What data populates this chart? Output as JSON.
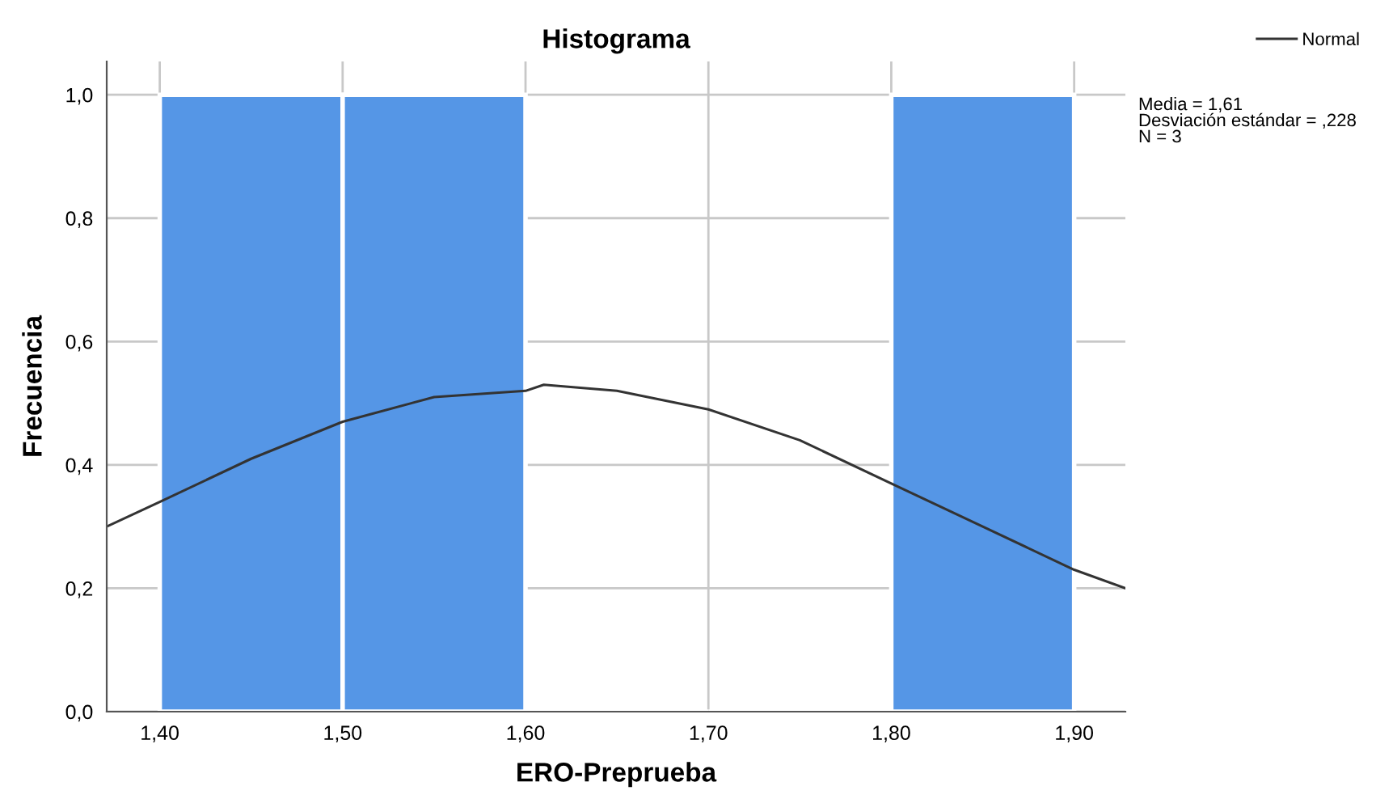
{
  "chart_data": {
    "type": "histogram",
    "title": "Histograma",
    "xlabel": "ERO-Preprueba",
    "ylabel": "Frecuencia",
    "bins": [
      1.4,
      1.5,
      1.6,
      1.7,
      1.8,
      1.9
    ],
    "values": [
      1,
      1,
      0,
      0,
      1
    ],
    "color": "#5596e6",
    "series": [
      {
        "name": "Normal",
        "type": "line",
        "color": "#333333",
        "x": [
          1.371,
          1.4,
          1.45,
          1.5,
          1.55,
          1.6,
          1.61,
          1.65,
          1.7,
          1.75,
          1.8,
          1.85,
          1.9,
          1.928
        ],
        "values": [
          0.3,
          0.34,
          0.41,
          0.47,
          0.51,
          0.52,
          0.53,
          0.52,
          0.49,
          0.44,
          0.37,
          0.3,
          0.23,
          0.2
        ]
      }
    ],
    "xlim": [
      1.371,
      1.928
    ],
    "ylim": [
      0,
      1.054
    ],
    "xticks": [
      {
        "value": 1.4,
        "label": "1,40"
      },
      {
        "value": 1.5,
        "label": "1,50"
      },
      {
        "value": 1.6,
        "label": "1,60"
      },
      {
        "value": 1.7,
        "label": "1,70"
      },
      {
        "value": 1.8,
        "label": "1,80"
      },
      {
        "value": 1.9,
        "label": "1,90"
      }
    ],
    "yticks": [
      {
        "value": 0,
        "label": "0,0"
      },
      {
        "value": 0.2,
        "label": "0,2"
      },
      {
        "value": 0.4,
        "label": "0,4"
      },
      {
        "value": 0.6,
        "label": "0,6"
      },
      {
        "value": 0.8,
        "label": "0,8"
      },
      {
        "value": 1.0,
        "label": "1,0"
      }
    ],
    "grid": true,
    "legend": "top right",
    "annotations": [
      "Media = 1,61",
      "Desviación estándar = ,228",
      "N = 3"
    ]
  }
}
